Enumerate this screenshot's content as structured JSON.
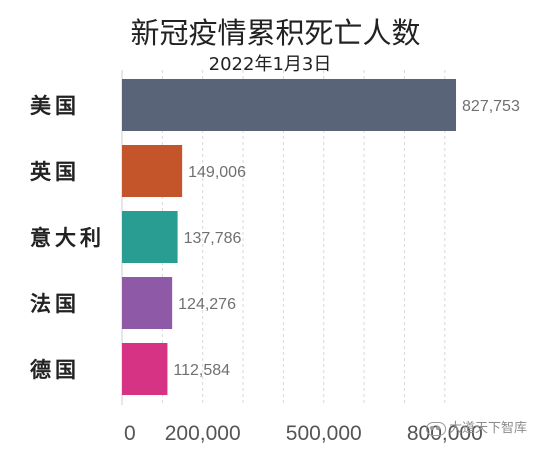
{
  "chart_data": {
    "type": "bar",
    "orientation": "horizontal",
    "title": "新冠疫情累积死亡人数",
    "subtitle": "2022年1月3日",
    "categories": [
      "美国",
      "英国",
      "意大利",
      "法国",
      "德国"
    ],
    "values": [
      827753,
      149006,
      137786,
      124276,
      112584
    ],
    "value_labels": [
      "827,753",
      "149,006",
      "137,786",
      "124,276",
      "112,584"
    ],
    "colors": [
      "#5a6478",
      "#c4552b",
      "#2a9d92",
      "#8e5aa8",
      "#d63384"
    ],
    "x_ticks": [
      {
        "value": 0,
        "label": "0"
      },
      {
        "value": 200000,
        "label": "200,000"
      },
      {
        "value": 500000,
        "label": "500,000"
      },
      {
        "value": 800000,
        "label": "800,000"
      }
    ],
    "xlim": [
      0,
      850000
    ],
    "grid": true,
    "legend": "none"
  },
  "watermark": "大道天下智库"
}
